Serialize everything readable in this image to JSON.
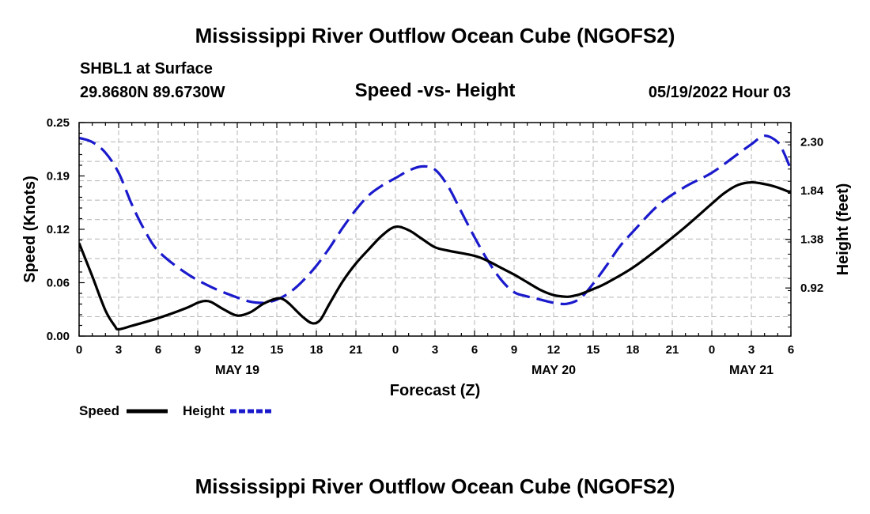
{
  "title": "Mississippi River Outflow Ocean Cube (NGOFS2)",
  "station": "SHBL1 at Surface",
  "coords": "29.8680N  89.6730W",
  "datetime": "05/19/2022 Hour 03",
  "footer_title": "Mississippi River Outflow Ocean Cube (NGOFS2)",
  "colors": {
    "speed": "#000000",
    "height": "#1a1acc",
    "grid": "#b4b4b4"
  },
  "chart_data": {
    "type": "line",
    "title": "Speed -vs- Height",
    "xlabel": "Forecast (Z)",
    "ylabel": "Speed (Knots)",
    "y2label": "Height (feet)",
    "xlim": [
      0,
      54
    ],
    "ylim": [
      0,
      0.25
    ],
    "y2lim": [
      0.465,
      2.485
    ],
    "y_ticks": [
      "0.00",
      "0.06",
      "0.12",
      "0.19",
      "0.25"
    ],
    "y2_ticks": [
      "0.92",
      "1.38",
      "1.84",
      "2.30"
    ],
    "x_ticks": [
      "0",
      "3",
      "6",
      "9",
      "12",
      "15",
      "18",
      "21",
      "0",
      "3",
      "6",
      "9",
      "12",
      "15",
      "18",
      "21",
      "0",
      "3",
      "6"
    ],
    "date_labels": [
      {
        "hour": 12,
        "label": "MAY 19"
      },
      {
        "hour": 36,
        "label": "MAY 20"
      },
      {
        "hour": 51,
        "label": "MAY 21"
      }
    ],
    "series": [
      {
        "name": "Speed",
        "axis": "left",
        "style": "solid",
        "x": [
          0,
          1,
          2,
          2.7,
          3,
          4,
          6,
          8,
          9,
          9.5,
          10,
          11,
          12,
          13,
          14,
          15,
          15.5,
          16,
          17,
          17.7,
          18.3,
          19,
          20,
          21,
          22,
          23,
          24,
          25,
          26,
          27,
          28,
          30,
          31,
          32,
          33,
          34,
          35,
          36,
          37,
          37.5,
          38,
          39,
          40,
          42,
          44,
          46,
          48,
          49,
          50,
          51,
          52,
          53,
          54
        ],
        "y": [
          0.109,
          0.07,
          0.03,
          0.012,
          0.008,
          0.012,
          0.021,
          0.032,
          0.039,
          0.041,
          0.04,
          0.031,
          0.024,
          0.028,
          0.038,
          0.044,
          0.043,
          0.037,
          0.022,
          0.015,
          0.019,
          0.038,
          0.064,
          0.085,
          0.102,
          0.118,
          0.128,
          0.124,
          0.114,
          0.104,
          0.1,
          0.094,
          0.088,
          0.08,
          0.072,
          0.063,
          0.054,
          0.048,
          0.046,
          0.047,
          0.049,
          0.055,
          0.062,
          0.08,
          0.103,
          0.128,
          0.155,
          0.168,
          0.177,
          0.18,
          0.178,
          0.174,
          0.168
        ]
      },
      {
        "name": "Height",
        "axis": "right",
        "style": "dashed",
        "x": [
          0,
          1,
          2,
          3,
          4,
          5,
          6,
          8,
          10,
          12,
          13,
          14,
          15,
          16,
          17,
          18,
          19,
          20,
          21,
          22,
          23,
          24,
          25,
          26,
          27,
          28,
          29,
          30,
          31,
          32,
          33,
          34,
          35,
          36,
          37,
          38,
          39,
          40,
          41,
          42,
          44,
          46,
          48,
          50,
          51,
          52,
          53,
          53.5,
          54
        ],
        "y": [
          2.34,
          2.3,
          2.2,
          2.01,
          1.71,
          1.46,
          1.27,
          1.07,
          0.93,
          0.83,
          0.79,
          0.78,
          0.81,
          0.88,
          0.99,
          1.13,
          1.3,
          1.49,
          1.66,
          1.8,
          1.89,
          1.96,
          2.03,
          2.07,
          2.04,
          1.88,
          1.64,
          1.4,
          1.18,
          1.0,
          0.88,
          0.84,
          0.81,
          0.78,
          0.77,
          0.82,
          0.96,
          1.13,
          1.31,
          1.45,
          1.71,
          1.88,
          2.01,
          2.19,
          2.28,
          2.36,
          2.3,
          2.19,
          2.04
        ]
      }
    ],
    "legend": [
      "Speed",
      "Height"
    ]
  }
}
